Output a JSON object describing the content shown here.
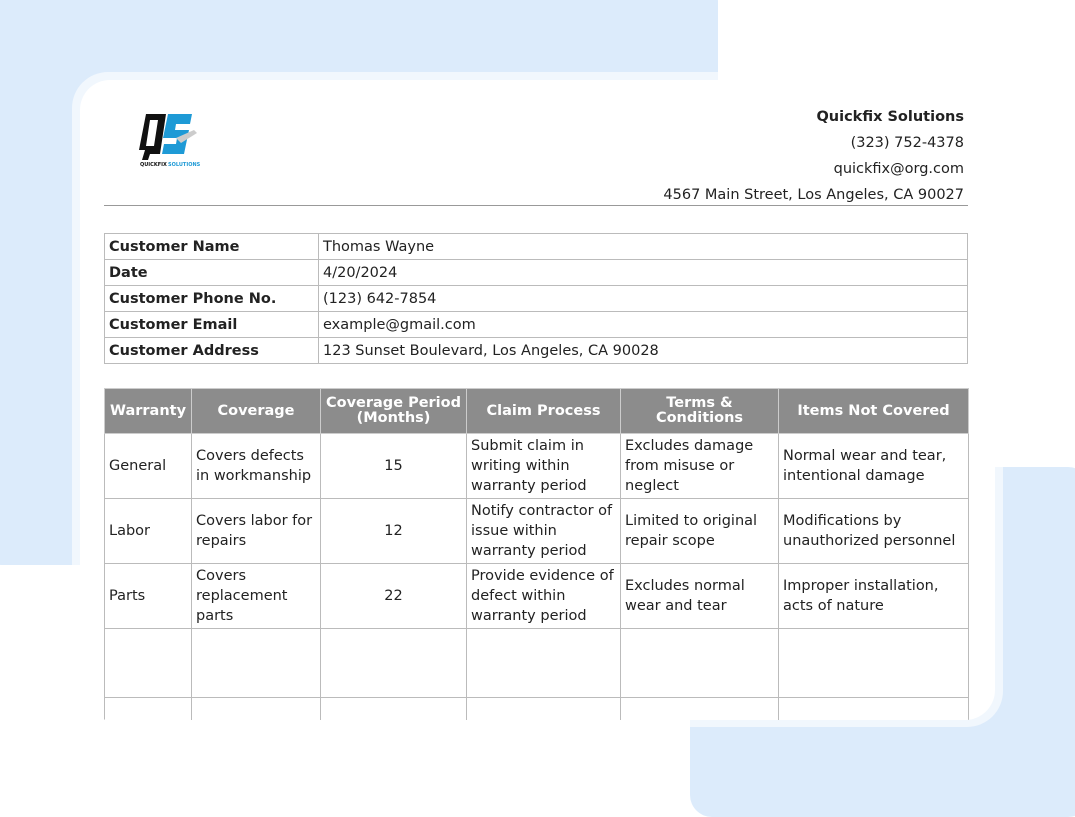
{
  "company": {
    "logo_text": "QS QUICKFIX SOLUTIONS",
    "name": "Quickfix Solutions",
    "phone": "(323) 752-4378",
    "email": "quickfix@org.com",
    "address": "4567 Main Street, Los Angeles, CA 90027"
  },
  "customer": [
    {
      "label": "Customer Name",
      "value": "Thomas Wayne"
    },
    {
      "label": "Date",
      "value": "4/20/2024"
    },
    {
      "label": "Customer Phone No.",
      "value": "(123) 642-7854"
    },
    {
      "label": "Customer Email",
      "value": "example@gmail.com"
    },
    {
      "label": "Customer Address",
      "value": "123 Sunset Boulevard, Los Angeles, CA 90028"
    }
  ],
  "warranty": {
    "headers": [
      "Warranty",
      "Coverage",
      "Coverage Period (Months)",
      "Claim Process",
      "Terms & Conditions",
      "Items Not Covered"
    ],
    "rows": [
      [
        "General",
        "Covers defects in workmanship",
        "15",
        "Submit claim in writing within warranty period",
        "Excludes damage from misuse or neglect",
        "Normal wear and tear, intentional damage"
      ],
      [
        "Labor",
        "Covers labor for repairs",
        "12",
        "Notify contractor of issue within warranty period",
        "Limited to original repair scope",
        "Modifications by unauthorized personnel"
      ],
      [
        "Parts",
        "Covers replacement parts",
        "22",
        "Provide evidence of defect within warranty period",
        "Excludes normal wear and tear",
        "Improper installation, acts of nature"
      ]
    ]
  },
  "colors": {
    "background_accent": "#dcebfb",
    "header_bg": "#8c8c8c",
    "logo_blue": "#1e9ad6"
  }
}
